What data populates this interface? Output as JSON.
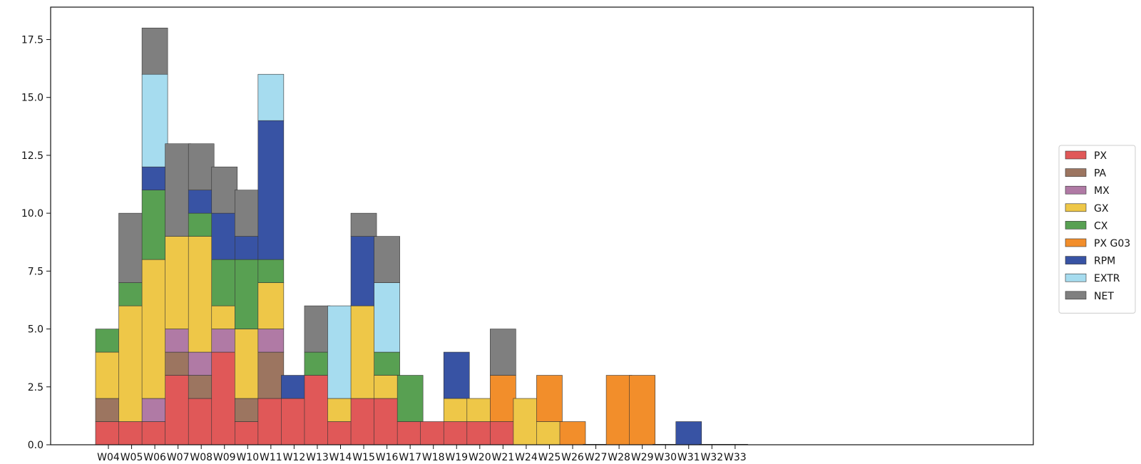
{
  "chart_data": {
    "type": "bar",
    "stacked": true,
    "title": "",
    "xlabel": "",
    "ylabel": "",
    "ylim": [
      0,
      18.9
    ],
    "y_ticks": [
      "0.0",
      "2.5",
      "5.0",
      "7.5",
      "10.0",
      "12.5",
      "15.0",
      "17.5"
    ],
    "grid": false,
    "legend_position": "right",
    "categories": [
      "W04",
      "W05",
      "W06",
      "W07",
      "W08",
      "W09",
      "W10",
      "W11",
      "W12",
      "W13",
      "W14",
      "W15",
      "W16",
      "W17",
      "W18",
      "W19",
      "W20",
      "W21",
      "W24",
      "W25",
      "W26",
      "W27",
      "W28",
      "W29",
      "W30",
      "W31",
      "W32",
      "W33"
    ],
    "series": [
      {
        "name": "PX",
        "color": "#e05858",
        "values": [
          1,
          1,
          1,
          3,
          2,
          4,
          1,
          2,
          2,
          3,
          1,
          2,
          2,
          1,
          1,
          1,
          1,
          1,
          0,
          0,
          0,
          0,
          0,
          0,
          0,
          0,
          0,
          0
        ]
      },
      {
        "name": "PA",
        "color": "#9c7560",
        "values": [
          1,
          0,
          0,
          1,
          1,
          0,
          1,
          2,
          0,
          0,
          0,
          0,
          0,
          0,
          0,
          0,
          0,
          0,
          0,
          0,
          0,
          0,
          0,
          0,
          0,
          0,
          0,
          0
        ]
      },
      {
        "name": "MX",
        "color": "#b07aa5",
        "values": [
          0,
          0,
          1,
          1,
          1,
          1,
          0,
          1,
          0,
          0,
          0,
          0,
          0,
          0,
          0,
          0,
          0,
          0,
          0,
          0,
          0,
          0,
          0,
          0,
          0,
          0,
          0,
          0
        ]
      },
      {
        "name": "GX",
        "color": "#eec748",
        "values": [
          2,
          5,
          6,
          4,
          5,
          1,
          3,
          2,
          0,
          0,
          1,
          4,
          1,
          0,
          0,
          1,
          1,
          0,
          2,
          1,
          0,
          0,
          0,
          0,
          0,
          0,
          0,
          0
        ]
      },
      {
        "name": "CX",
        "color": "#58a052",
        "values": [
          1,
          1,
          3,
          0,
          1,
          2,
          3,
          1,
          0,
          1,
          0,
          0,
          1,
          2,
          0,
          0,
          0,
          0,
          0,
          0,
          0,
          0,
          0,
          0,
          0,
          0,
          0,
          0
        ]
      },
      {
        "name": "PX G03",
        "color": "#f28e2b",
        "values": [
          0,
          0,
          0,
          0,
          0,
          0,
          0,
          0,
          0,
          0,
          0,
          0,
          0,
          0,
          0,
          0,
          0,
          2,
          0,
          2,
          1,
          0,
          3,
          3,
          0,
          0,
          0,
          0
        ]
      },
      {
        "name": "RPM",
        "color": "#3853a4",
        "values": [
          0,
          0,
          1,
          0,
          1,
          2,
          1,
          6,
          1,
          0,
          0,
          3,
          0,
          0,
          0,
          2,
          0,
          0,
          0,
          0,
          0,
          0,
          0,
          0,
          0,
          1,
          0,
          0
        ]
      },
      {
        "name": "EXTR",
        "color": "#a6dcef",
        "values": [
          0,
          0,
          4,
          0,
          0,
          0,
          0,
          2,
          0,
          0,
          4,
          0,
          3,
          0,
          0,
          0,
          0,
          0,
          0,
          0,
          0,
          0,
          0,
          0,
          0,
          0,
          0,
          0
        ]
      },
      {
        "name": "NET",
        "color": "#7f7f7f",
        "values": [
          0,
          3,
          2,
          4,
          2,
          2,
          2,
          0,
          0,
          2,
          0,
          1,
          2,
          0,
          0,
          0,
          0,
          2,
          0,
          0,
          0,
          0,
          0,
          0,
          0,
          0,
          0,
          0
        ]
      }
    ]
  }
}
